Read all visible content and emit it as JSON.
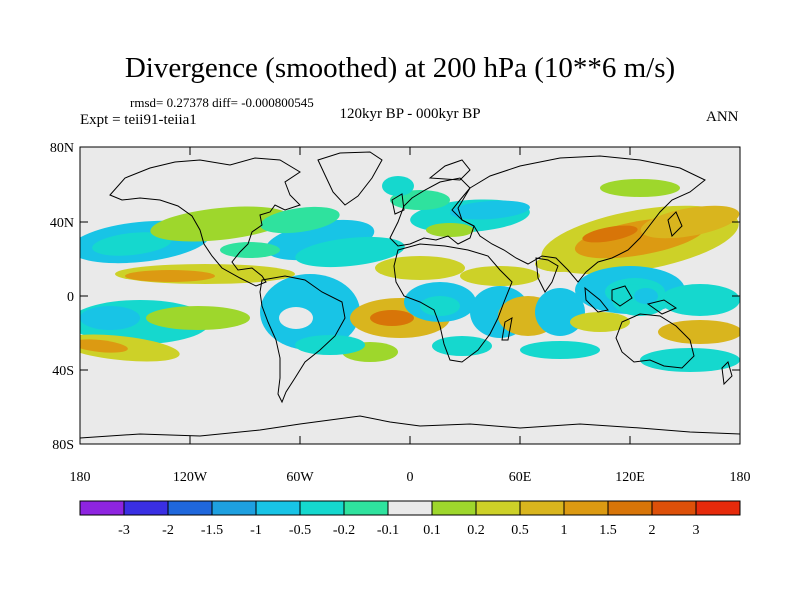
{
  "title": "Divergence (smoothed) at 200 hPa (10**6 m/s)",
  "stats_text": "rmsd= 0.27378  diff= -0.000800545",
  "experiment_text": "Expt = teii91-teiia1",
  "period_text": "120kyr BP - 000kyr BP",
  "season_text": "ANN",
  "y_ticks": [
    "80N",
    "40N",
    "0",
    "40S",
    "80S"
  ],
  "x_ticks": [
    "180",
    "120W",
    "60W",
    "0",
    "60E",
    "120E",
    "180"
  ],
  "colorbar": {
    "colors": [
      "#8e24e0",
      "#3a2fe3",
      "#1f67dc",
      "#1ea0e0",
      "#18c4e6",
      "#15d8ce",
      "#2fe29e",
      "#eaeaea",
      "#9ed72c",
      "#cdd128",
      "#d9b51e",
      "#dc9a12",
      "#d87508",
      "#dd5009",
      "#e62a0b"
    ],
    "labels": [
      "-3",
      "-2",
      "-1.5",
      "-1",
      "-0.5",
      "-0.2",
      "-0.1",
      "0.1",
      "0.2",
      "0.5",
      "1",
      "1.5",
      "2",
      "3"
    ]
  },
  "field_colors": {
    "neutral": "#eaeaea",
    "weak_neg": "#2fe29e",
    "neg1": "#15d8ce",
    "neg2": "#18c4e6",
    "weak_pos": "#9ed72c",
    "pos1": "#cdd128",
    "pos2": "#d9b51e",
    "pos3": "#dc9a12",
    "pos4": "#d87508"
  }
}
